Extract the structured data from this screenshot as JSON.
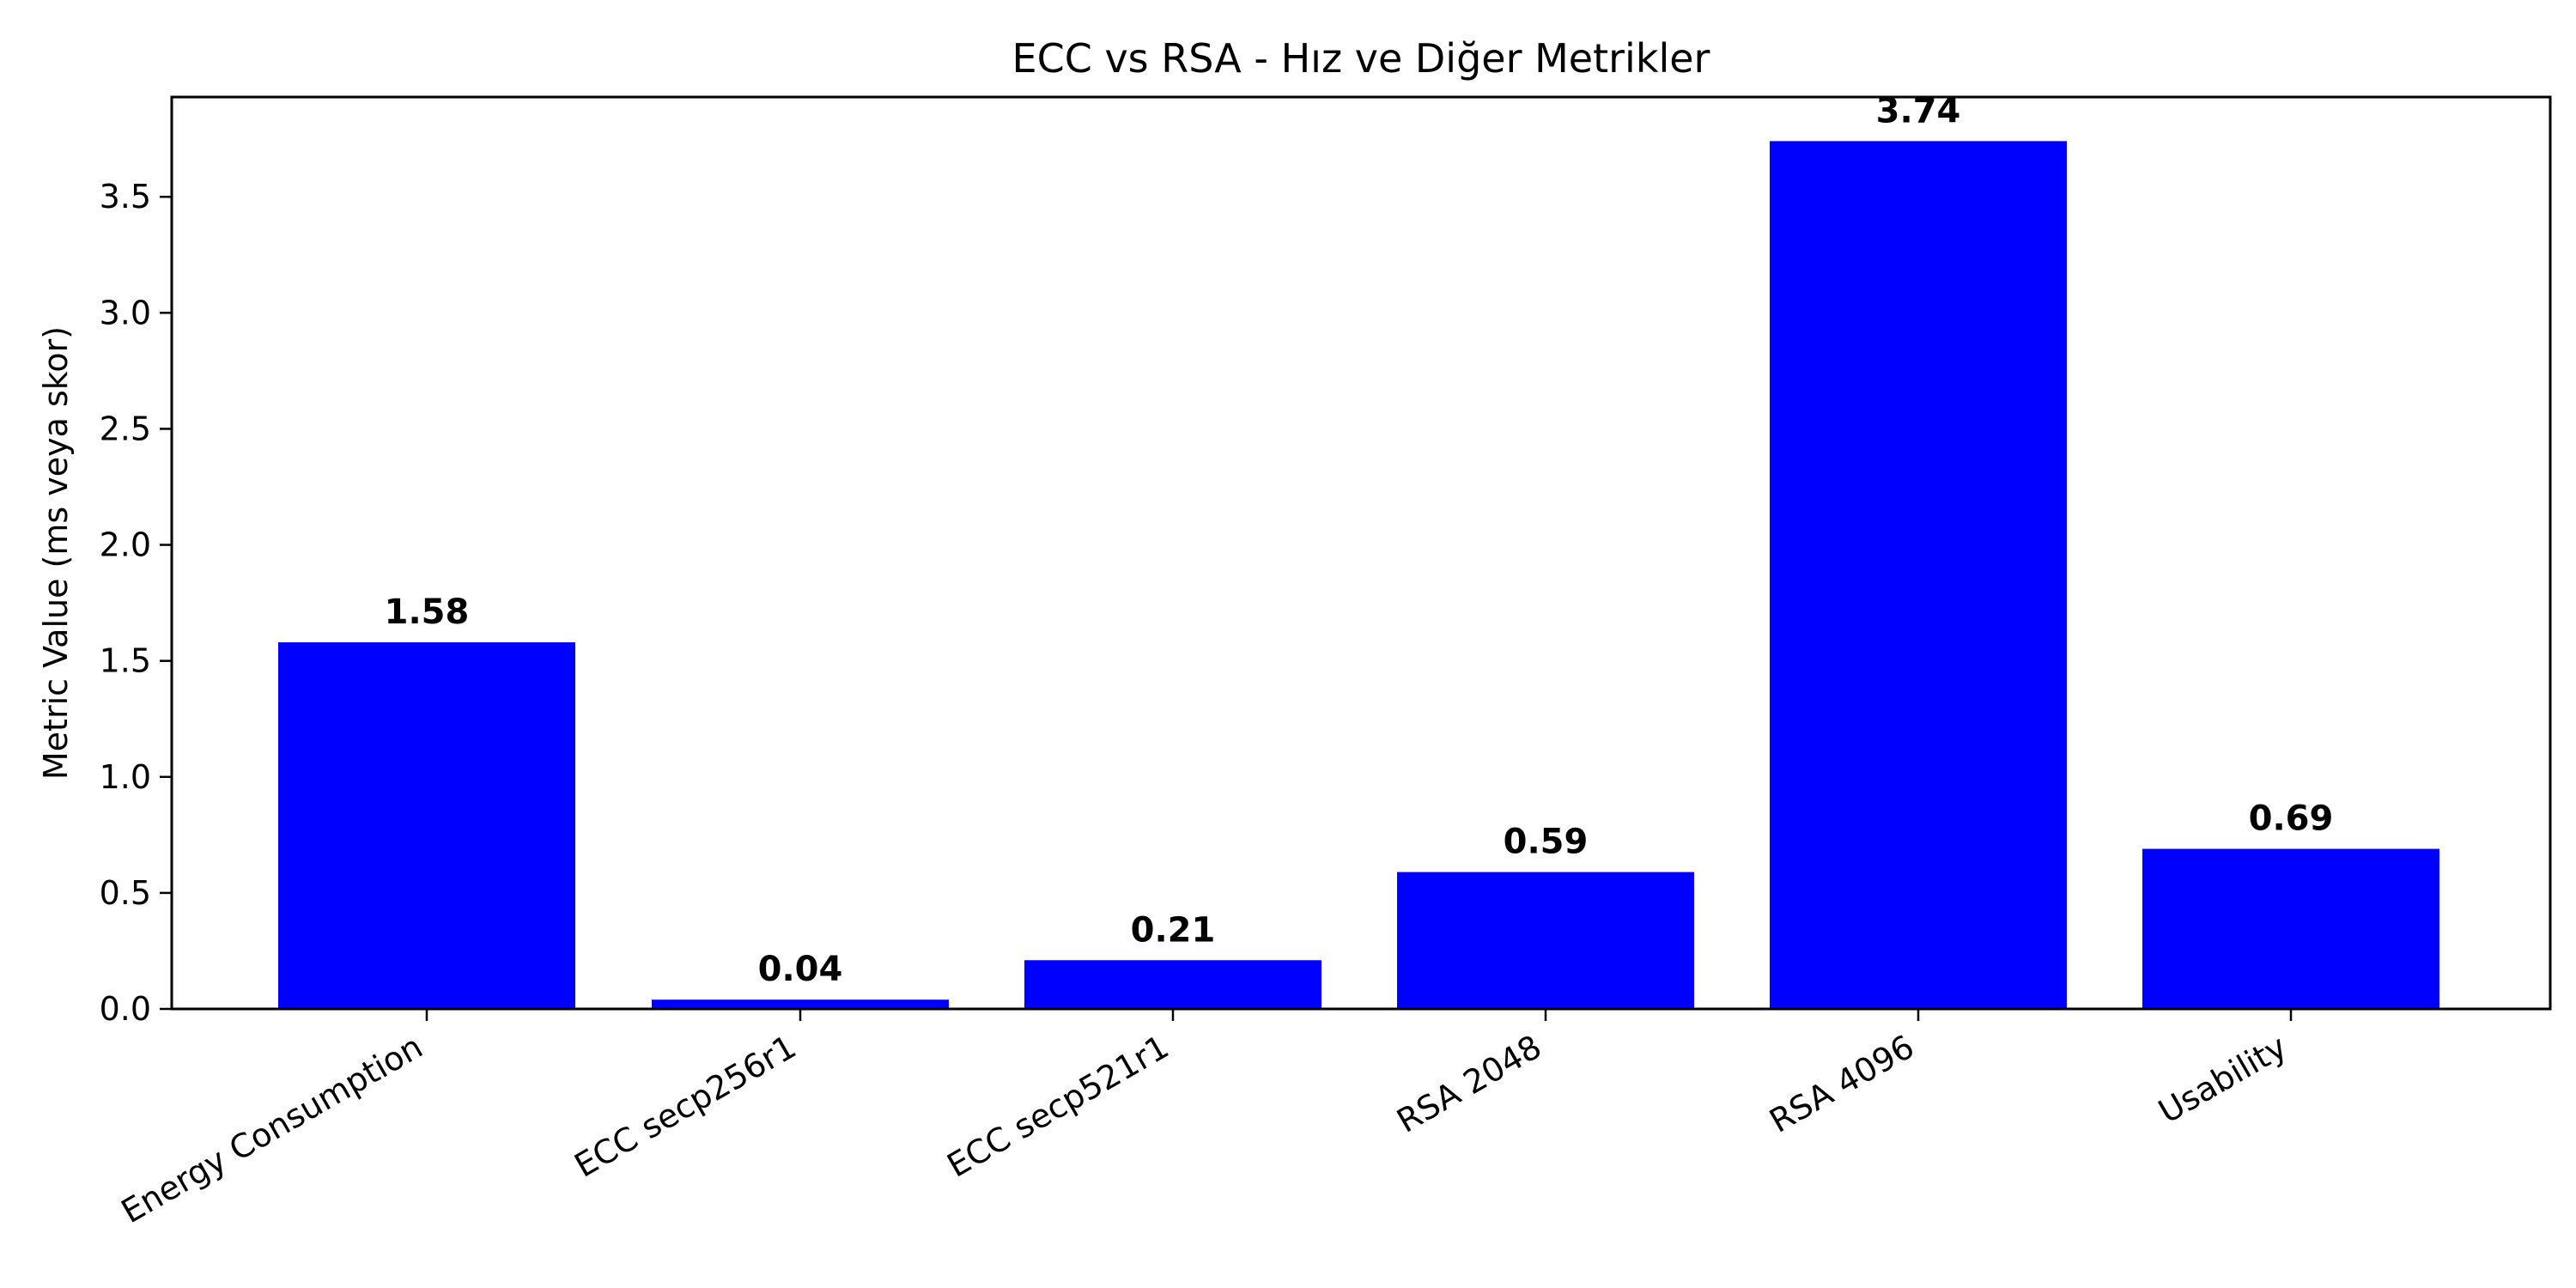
{
  "chart_data": {
    "type": "bar",
    "title": "ECC vs RSA - Hız ve Diğer Metrikler",
    "xlabel": "",
    "ylabel": "Metric Value (ms veya skor)",
    "categories": [
      "Energy Consumption",
      "ECC secp256r1",
      "ECC secp521r1",
      "RSA 2048",
      "RSA 4096",
      "Usability"
    ],
    "values": [
      1.58,
      0.04,
      0.21,
      0.59,
      3.74,
      0.69
    ],
    "value_labels": [
      "1.58",
      "0.04",
      "0.21",
      "0.59",
      "3.74",
      "0.69"
    ],
    "ylim": [
      0,
      3.93
    ],
    "yticks": [
      0.0,
      0.5,
      1.0,
      1.5,
      2.0,
      2.5,
      3.0,
      3.5
    ],
    "ytick_labels": [
      "0.0",
      "0.5",
      "1.0",
      "1.5",
      "2.0",
      "2.5",
      "3.0",
      "3.5"
    ],
    "bar_color": "#0000ff",
    "grid": false,
    "legend": "none"
  }
}
